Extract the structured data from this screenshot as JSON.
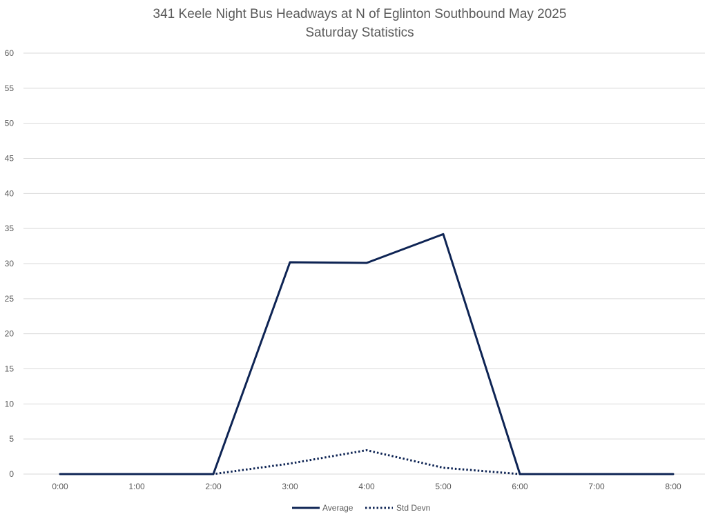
{
  "chart_data": {
    "type": "line",
    "title": "341 Keele Night Bus Headways at N of Eglinton Southbound May 2025",
    "subtitle": "Saturday Statistics",
    "xlabel": "",
    "ylabel": "",
    "categories": [
      "0:00",
      "1:00",
      "2:00",
      "3:00",
      "4:00",
      "5:00",
      "6:00",
      "7:00",
      "8:00"
    ],
    "ylim": [
      0,
      60
    ],
    "yticks": [
      0,
      5,
      10,
      15,
      20,
      25,
      30,
      35,
      40,
      45,
      50,
      55,
      60
    ],
    "grid": true,
    "legend_position": "bottom",
    "series": [
      {
        "name": "Average",
        "values": [
          0,
          0,
          0,
          30.2,
          30.1,
          34.2,
          0,
          0,
          0
        ],
        "style": "solid",
        "color": "#0e2454"
      },
      {
        "name": "Std Devn",
        "values": [
          0,
          0,
          0,
          1.5,
          3.4,
          0.9,
          0,
          0,
          0
        ],
        "style": "dotted",
        "color": "#0e2454"
      }
    ]
  }
}
